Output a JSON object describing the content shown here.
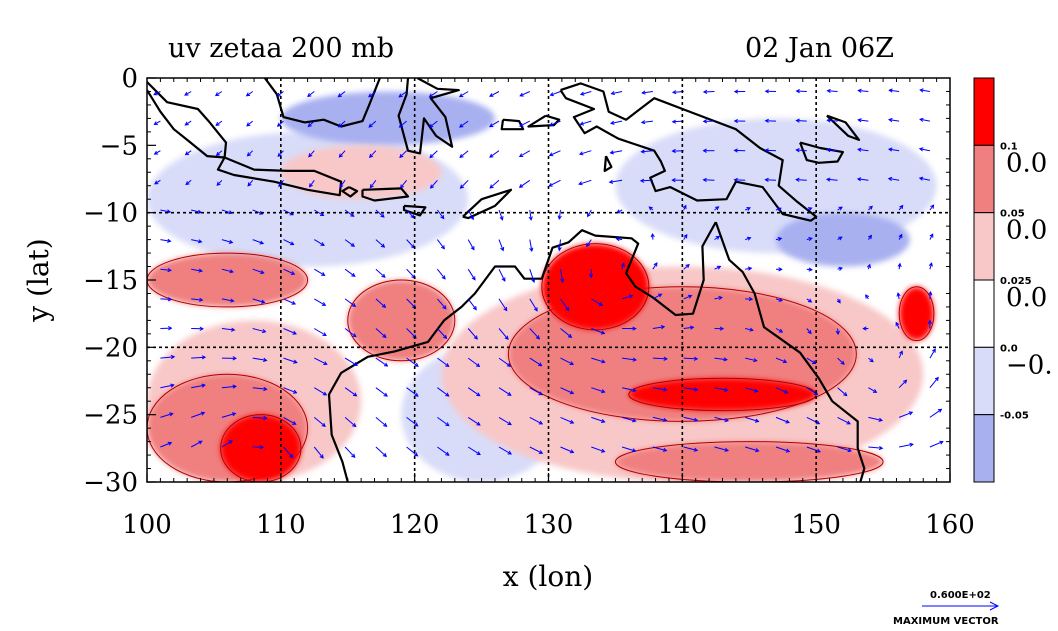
{
  "chart_data": {
    "type": "heatmap",
    "title": "uv zetaa 200 mb",
    "subtitle": "02 Jan 06Z",
    "xlabel": "x (lon)",
    "ylabel": "y (lat)",
    "xlim": [
      100,
      160
    ],
    "ylim": [
      -30,
      0
    ],
    "x_ticks": [
      "100",
      "110",
      "120",
      "130",
      "140",
      "150",
      "160"
    ],
    "y_ticks": [
      "0",
      "−5",
      "−10",
      "−15",
      "−20",
      "−25",
      "−30"
    ],
    "grid": true,
    "colorbar": {
      "labels": [
        "0.1",
        "0.05",
        "0.025",
        "0.0",
        "-0.05"
      ],
      "large_labels": [
        "0.0",
        "0.0",
        "0.0",
        "−0."
      ],
      "colors": [
        "#ff0000",
        "#f08080",
        "#f8c8c8",
        "#ffffff",
        "#d8dcf8",
        "#a8b0f0"
      ]
    },
    "vector_key": {
      "value_label": "0.600E+02",
      "caption": "MAXIMUM VECTOR",
      "color": "#0000ff"
    },
    "regions": [
      {
        "level": "strong-positive",
        "color": "#ff0000",
        "center": [
          133.5,
          -15.5
        ],
        "radius": [
          4,
          3.2
        ]
      },
      {
        "level": "strong-positive",
        "color": "#ff0000",
        "center": [
          143,
          -23.5
        ],
        "radius": [
          7,
          1.2
        ]
      },
      {
        "level": "strong-positive",
        "color": "#ff0000",
        "center": [
          108.5,
          -27.5
        ],
        "radius": [
          3,
          2.5
        ]
      },
      {
        "level": "strong-positive",
        "color": "#ff0000",
        "center": [
          157.5,
          -17.5
        ],
        "radius": [
          1.3,
          2
        ]
      },
      {
        "level": "positive",
        "color": "#f08080",
        "center": [
          140,
          -20.5
        ],
        "radius": [
          13,
          5
        ]
      },
      {
        "level": "positive",
        "color": "#f08080",
        "center": [
          106,
          -26
        ],
        "radius": [
          6,
          4
        ]
      },
      {
        "level": "positive",
        "color": "#f08080",
        "center": [
          119,
          -18
        ],
        "radius": [
          4,
          3
        ]
      },
      {
        "level": "positive",
        "color": "#f08080",
        "center": [
          106,
          -15
        ],
        "radius": [
          6,
          2
        ]
      },
      {
        "level": "positive",
        "color": "#f08080",
        "center": [
          145,
          -28.5
        ],
        "radius": [
          10,
          1.5
        ]
      },
      {
        "level": "weak-positive",
        "color": "#f8c8c8",
        "center": [
          140,
          -22
        ],
        "radius": [
          18,
          8
        ]
      },
      {
        "level": "weak-positive",
        "color": "#f8c8c8",
        "center": [
          108,
          -24
        ],
        "radius": [
          8,
          6
        ]
      },
      {
        "level": "weak-positive",
        "color": "#f8c8c8",
        "center": [
          116,
          -7
        ],
        "radius": [
          6,
          2
        ]
      },
      {
        "level": "weak-negative",
        "color": "#d8dcf8",
        "center": [
          112,
          -9
        ],
        "radius": [
          12,
          5
        ]
      },
      {
        "level": "weak-negative",
        "color": "#d8dcf8",
        "center": [
          147,
          -8
        ],
        "radius": [
          12,
          5
        ]
      },
      {
        "level": "weak-negative",
        "color": "#d8dcf8",
        "center": [
          125,
          -25
        ],
        "radius": [
          6,
          5
        ]
      },
      {
        "level": "negative",
        "color": "#a8b0f0",
        "center": [
          118,
          -3
        ],
        "radius": [
          8,
          2
        ]
      },
      {
        "level": "negative",
        "color": "#a8b0f0",
        "center": [
          152,
          -12
        ],
        "radius": [
          5,
          2
        ]
      }
    ]
  }
}
